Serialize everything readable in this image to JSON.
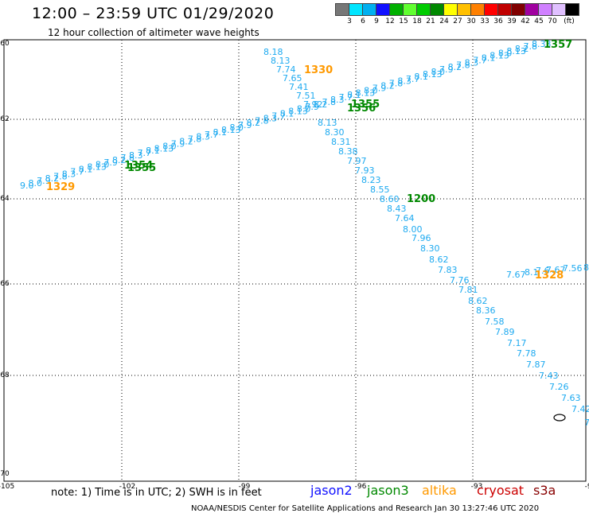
{
  "header": {
    "title": "12:00 – 23:59 UTC 01/29/2020",
    "subtitle": "12 hour collection of altimeter wave heights"
  },
  "legend": {
    "colors": [
      "#777777",
      "#00e5ff",
      "#00b0f0",
      "#1010ff",
      "#00b000",
      "#60ff30",
      "#00cc00",
      "#008800",
      "#ffff00",
      "#ffc000",
      "#ff8000",
      "#ff0000",
      "#c00000",
      "#800000",
      "#a000a0",
      "#d080ff",
      "#e0c0ff",
      "#000000"
    ],
    "labels": [
      "3",
      "6",
      "9",
      "12",
      "15",
      "18",
      "21",
      "24",
      "27",
      "30",
      "33",
      "36",
      "39",
      "42",
      "45",
      "70",
      "(ft)"
    ]
  },
  "axes": {
    "lat_labels": [
      "-60",
      "-62",
      "-64",
      "-66",
      "-68",
      "-70"
    ],
    "lon_labels": [
      "-105",
      "-102",
      "-99",
      "-96",
      "-93",
      "-90"
    ]
  },
  "tracks": {
    "color": "#1eaaf0",
    "diagonal_values": [
      "8.18",
      "8.13",
      "7.74",
      "7.65",
      "7.41",
      "7.51",
      "7.92",
      "8.13",
      "8.30",
      "8.31",
      "8.38",
      "7.97",
      "7.93",
      "8.23",
      "8.55",
      "8.60",
      "8.43",
      "7.64",
      "8.00",
      "7.96",
      "8.30",
      "8.62",
      "7.83",
      "7.76",
      "7.81",
      "8.62",
      "8.36",
      "7.58",
      "7.89",
      "7.17",
      "7.78",
      "7.87",
      "7.43",
      "7.26",
      "7.63",
      "7.42",
      "7"
    ],
    "long_track_start": "9.0",
    "long_track_end": "8.33",
    "long_track_mid": "8.13",
    "short_track_values": [
      "7.67",
      "8.1",
      "7.6",
      "7.67",
      "7.56",
      "8"
    ]
  },
  "times": [
    {
      "text": "1357",
      "color": "#008800"
    },
    {
      "text": "1330",
      "color": "#ff9900"
    },
    {
      "text": "1356",
      "color": "#008800"
    },
    {
      "text": "1355",
      "color": "#008800"
    },
    {
      "text": "1355",
      "color": "#008800"
    },
    {
      "text": "1354",
      "color": "#008800"
    },
    {
      "text": "1329",
      "color": "#ff9900"
    },
    {
      "text": "1200",
      "color": "#008800"
    },
    {
      "text": "1328",
      "color": "#ff9900"
    }
  ],
  "footer": {
    "note": "note:  1) Time is in UTC;  2) SWH is in feet",
    "satellites": [
      {
        "name": "jason2",
        "color": "#1010ff"
      },
      {
        "name": "jason3",
        "color": "#008800"
      },
      {
        "name": "altika",
        "color": "#ff9900"
      },
      {
        "name": "cryosat",
        "color": "#cc0000"
      },
      {
        "name": "s3a",
        "color": "#880000"
      }
    ],
    "credit": "NOAA/NESDIS Center for Satellite Applications and Research    Jan 30 13:27:46 UTC 2020"
  }
}
